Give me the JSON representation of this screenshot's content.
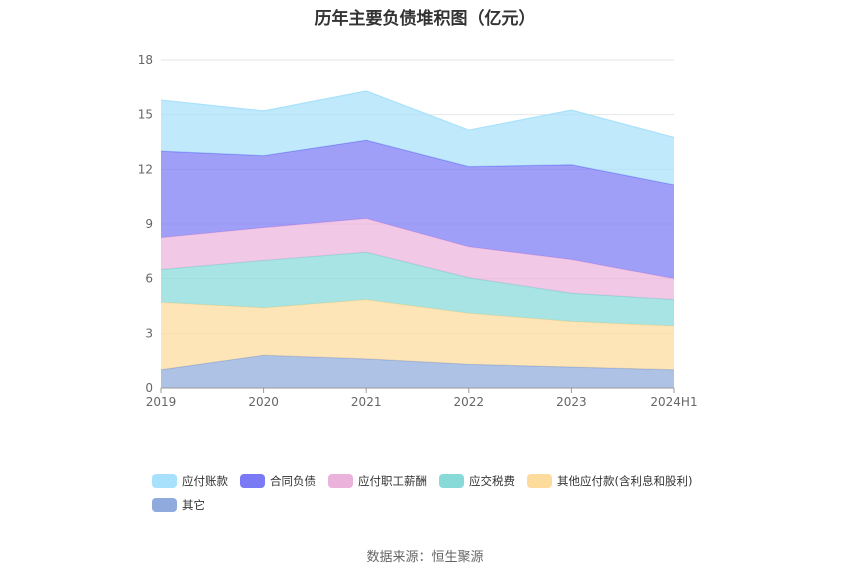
{
  "chart_data": {
    "type": "area",
    "stacked": true,
    "title": "历年主要负债堆积图（亿元）",
    "categories": [
      "2019",
      "2020",
      "2021",
      "2022",
      "2023",
      "2024H1"
    ],
    "yticks": [
      "0",
      "3",
      "6",
      "9",
      "12",
      "15",
      "18"
    ],
    "ylim": [
      0,
      18
    ],
    "grid": true,
    "legend_position": "bottom",
    "series": [
      {
        "name": "其它",
        "color": "#8FAADC",
        "values": [
          1.0,
          1.8,
          1.6,
          1.3,
          1.15,
          1.0
        ]
      },
      {
        "name": "其他应付款(含利息和股利)",
        "color": "#FDDB9C",
        "values": [
          3.7,
          2.6,
          3.25,
          2.8,
          2.5,
          2.4
        ]
      },
      {
        "name": "应交税费",
        "color": "#87DAD8",
        "values": [
          1.8,
          2.6,
          2.6,
          1.95,
          1.55,
          1.45
        ]
      },
      {
        "name": "应付职工薪酬",
        "color": "#EBB3DC",
        "values": [
          1.75,
          1.8,
          1.85,
          1.7,
          1.85,
          1.15
        ]
      },
      {
        "name": "合同负债",
        "color": "#7A7AF5",
        "values": [
          4.75,
          3.95,
          4.3,
          4.4,
          5.2,
          5.15
        ]
      },
      {
        "name": "应付账款",
        "color": "#A8E1FB",
        "values": [
          2.8,
          2.45,
          2.7,
          2.0,
          3.0,
          2.6
        ]
      }
    ],
    "legend_order": [
      "应付账款",
      "合同负债",
      "应付职工薪酬",
      "应交税费",
      "其他应付款(含利息和股利)",
      "其它"
    ],
    "source": "数据来源：恒生聚源"
  }
}
